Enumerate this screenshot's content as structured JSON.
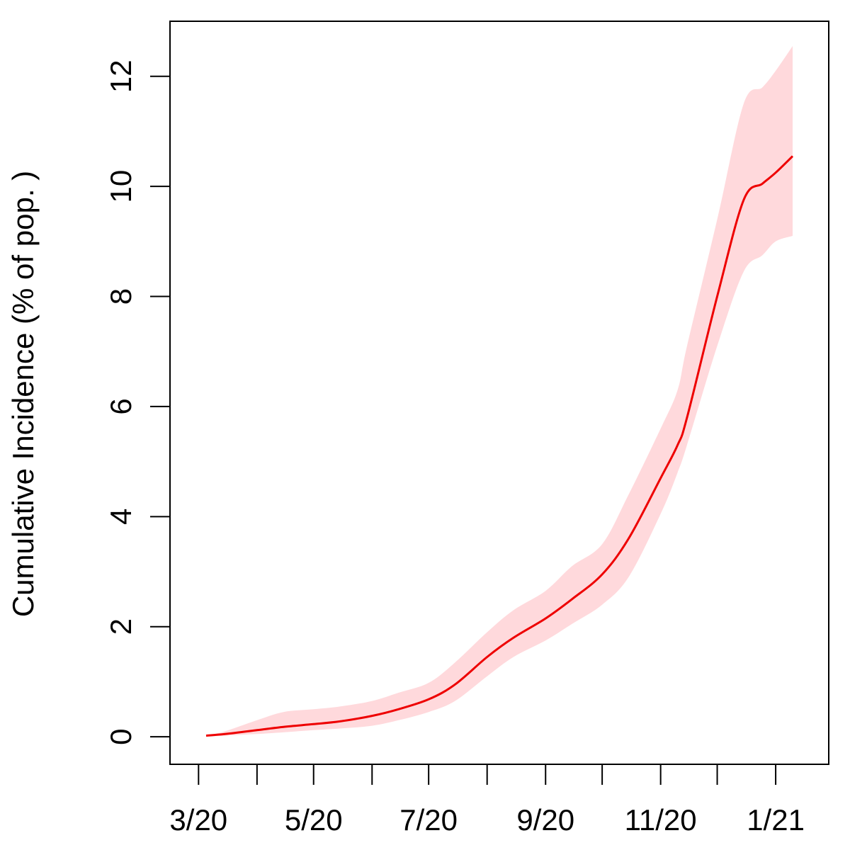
{
  "chart_data": {
    "type": "line",
    "title": "",
    "xlabel": "",
    "ylabel": "Cumulative Incidence (% of pop. )",
    "ylim": [
      -0.5,
      13.0
    ],
    "y_ticks": [
      0,
      2,
      4,
      6,
      8,
      10,
      12
    ],
    "x_tick_labels": [
      "3/20",
      "5/20",
      "7/20",
      "9/20",
      "11/20",
      "1/21"
    ],
    "x_tick_dates": [
      "2020-03-01",
      "2020-05-01",
      "2020-07-01",
      "2020-09-01",
      "2020-11-01",
      "2021-01-01"
    ],
    "x_minor_tick_dates": [
      "2020-04-01",
      "2020-06-01",
      "2020-08-01",
      "2020-10-01",
      "2020-12-01"
    ],
    "xlim": [
      "2020-02-22",
      "2021-01-22"
    ],
    "grid": false,
    "legend": "none",
    "colors": {
      "line": "#ee0000",
      "band": "#ffd9dc"
    },
    "series": [
      {
        "dates": [
          "2020-03-05",
          "2020-03-15",
          "2020-04-01",
          "2020-04-15",
          "2020-05-01",
          "2020-05-15",
          "2020-06-01",
          "2020-06-15",
          "2020-07-01",
          "2020-07-15",
          "2020-08-01",
          "2020-08-15",
          "2020-09-01",
          "2020-09-15",
          "2020-10-01",
          "2020-10-15",
          "2020-11-01",
          "2020-11-10",
          "2020-11-15",
          "2020-12-01",
          "2020-12-15",
          "2020-12-25",
          "2021-01-01",
          "2021-01-10"
        ],
        "mean": [
          0.02,
          0.05,
          0.12,
          0.18,
          0.23,
          0.28,
          0.38,
          0.5,
          0.68,
          0.95,
          1.45,
          1.8,
          2.15,
          2.5,
          2.95,
          3.6,
          4.7,
          5.3,
          5.8,
          8.0,
          9.75,
          10.05,
          10.25,
          10.55
        ],
        "lower": [
          0.0,
          0.02,
          0.05,
          0.08,
          0.12,
          0.15,
          0.2,
          0.3,
          0.45,
          0.65,
          1.1,
          1.45,
          1.75,
          2.05,
          2.4,
          2.9,
          4.05,
          4.8,
          5.3,
          7.1,
          8.45,
          8.75,
          9.0,
          9.1
        ],
        "upper": [
          0.02,
          0.1,
          0.3,
          0.45,
          0.5,
          0.55,
          0.65,
          0.8,
          0.98,
          1.35,
          1.9,
          2.3,
          2.65,
          3.1,
          3.5,
          4.4,
          5.6,
          6.3,
          7.1,
          9.4,
          11.5,
          11.8,
          12.1,
          12.55
        ]
      }
    ]
  }
}
